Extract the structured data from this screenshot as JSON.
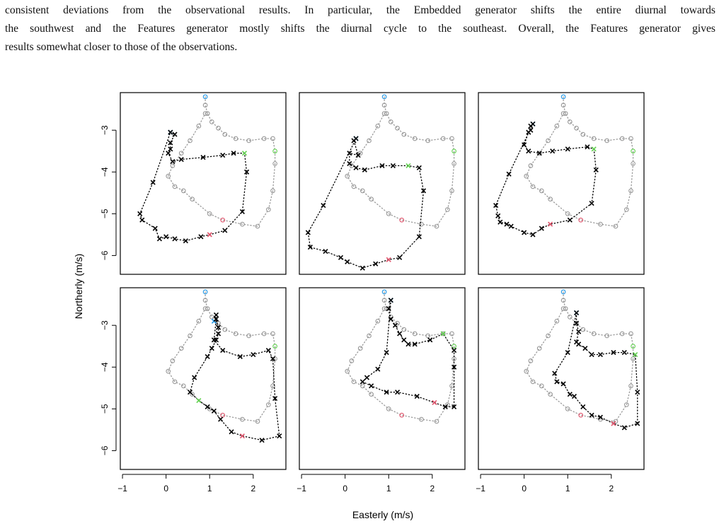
{
  "paragraph": {
    "lines": [
      "consistent deviations from the observational results. In particular, the Embedded generator shifts the entire diurnal towards",
      "the southwest and the Features generator mostly shifts the diurnal cycle to the southeast. Overall, the Features generator gives",
      "results somewhat closer to those of the observations."
    ]
  },
  "colors": {
    "observed": "#999999",
    "generated": "#000000",
    "start": "#2297e6",
    "noon": "#61d04f",
    "evening": "#df536b"
  },
  "chart_data": {
    "type": "scatter",
    "xlabel": "Easterly (m/s)",
    "ylabel": "Northerly (m/s)",
    "x_ticks": [
      "−1",
      "0",
      "1",
      "2"
    ],
    "y_ticks": [
      "−3",
      "−4",
      "−5",
      "−6"
    ],
    "xlim": [
      -1.05,
      2.75
    ],
    "ylim": [
      -6.45,
      -2.1
    ],
    "grid": false,
    "observed_series": [
      [
        0.9,
        -2.2
      ],
      [
        0.9,
        -2.4
      ],
      [
        0.95,
        -2.6
      ],
      [
        1.05,
        -2.8
      ],
      [
        1.2,
        -2.95
      ],
      [
        1.35,
        -3.1
      ],
      [
        1.6,
        -3.2
      ],
      [
        1.9,
        -3.25
      ],
      [
        2.25,
        -3.2
      ],
      [
        2.45,
        -3.2
      ],
      [
        2.5,
        -3.5
      ],
      [
        2.5,
        -3.8
      ],
      [
        2.45,
        -4.45
      ],
      [
        2.35,
        -4.9
      ],
      [
        2.1,
        -5.3
      ],
      [
        1.75,
        -5.25
      ],
      [
        1.3,
        -5.15
      ],
      [
        1.0,
        -5.0
      ],
      [
        0.6,
        -4.65
      ],
      [
        0.4,
        -4.45
      ],
      [
        0.2,
        -4.35
      ],
      [
        0.05,
        -4.1
      ],
      [
        0.15,
        -3.85
      ],
      [
        0.35,
        -3.55
      ],
      [
        0.55,
        -3.25
      ],
      [
        0.75,
        -2.9
      ],
      [
        0.9,
        -2.6
      ]
    ],
    "panels": [
      [
        [
          0.1,
          -3.05
        ],
        [
          0.2,
          -3.1
        ],
        [
          0.1,
          -3.3
        ],
        [
          0.1,
          -3.45
        ],
        [
          0.05,
          -3.55
        ],
        [
          0.15,
          -3.75
        ],
        [
          0.35,
          -3.7
        ],
        [
          0.85,
          -3.65
        ],
        [
          1.3,
          -3.6
        ],
        [
          1.55,
          -3.55
        ],
        [
          1.8,
          -3.55
        ],
        [
          1.85,
          -4.0
        ],
        [
          1.75,
          -4.95
        ],
        [
          1.35,
          -5.4
        ],
        [
          1.0,
          -5.5
        ],
        [
          0.8,
          -5.55
        ],
        [
          0.45,
          -5.65
        ],
        [
          0.2,
          -5.6
        ],
        [
          0.0,
          -5.55
        ],
        [
          -0.15,
          -5.6
        ],
        [
          -0.25,
          -5.35
        ],
        [
          -0.55,
          -5.15
        ],
        [
          -0.6,
          -5.0
        ],
        [
          -0.3,
          -4.25
        ],
        [
          0.1,
          -3.05
        ]
      ],
      [
        [
          0.25,
          -3.2
        ],
        [
          0.2,
          -3.25
        ],
        [
          0.3,
          -3.6
        ],
        [
          0.1,
          -3.55
        ],
        [
          0.1,
          -3.8
        ],
        [
          0.25,
          -3.9
        ],
        [
          0.45,
          -3.95
        ],
        [
          0.85,
          -3.85
        ],
        [
          1.1,
          -3.85
        ],
        [
          1.45,
          -3.85
        ],
        [
          1.7,
          -3.9
        ],
        [
          1.8,
          -4.45
        ],
        [
          1.7,
          -5.55
        ],
        [
          1.25,
          -6.05
        ],
        [
          1.0,
          -6.1
        ],
        [
          0.7,
          -6.2
        ],
        [
          0.4,
          -6.3
        ],
        [
          0.05,
          -6.15
        ],
        [
          -0.1,
          -6.05
        ],
        [
          -0.45,
          -5.9
        ],
        [
          -0.8,
          -5.8
        ],
        [
          -0.85,
          -5.45
        ],
        [
          -0.5,
          -4.8
        ],
        [
          0.25,
          -3.2
        ]
      ],
      [
        [
          0.2,
          -2.85
        ],
        [
          0.15,
          -2.9
        ],
        [
          0.15,
          -3.0
        ],
        [
          0.1,
          -3.05
        ],
        [
          0.0,
          -3.35
        ],
        [
          0.1,
          -3.5
        ],
        [
          0.35,
          -3.55
        ],
        [
          0.65,
          -3.5
        ],
        [
          1.0,
          -3.45
        ],
        [
          1.45,
          -3.4
        ],
        [
          1.6,
          -3.45
        ],
        [
          1.65,
          -3.95
        ],
        [
          1.55,
          -4.75
        ],
        [
          1.05,
          -5.15
        ],
        [
          0.6,
          -5.25
        ],
        [
          0.4,
          -5.35
        ],
        [
          0.2,
          -5.5
        ],
        [
          0.0,
          -5.45
        ],
        [
          -0.3,
          -5.3
        ],
        [
          -0.4,
          -5.25
        ],
        [
          -0.55,
          -5.2
        ],
        [
          -0.6,
          -5.05
        ],
        [
          -0.65,
          -4.8
        ],
        [
          -0.35,
          -4.05
        ],
        [
          0.2,
          -2.85
        ]
      ],
      [
        [
          1.1,
          -2.9
        ],
        [
          1.15,
          -2.75
        ],
        [
          1.15,
          -2.85
        ],
        [
          1.2,
          -3.05
        ],
        [
          1.2,
          -3.2
        ],
        [
          1.15,
          -3.35
        ],
        [
          1.05,
          -3.55
        ],
        [
          0.95,
          -3.75
        ],
        [
          0.65,
          -4.25
        ],
        [
          0.55,
          -4.6
        ],
        [
          0.75,
          -4.8
        ],
        [
          0.95,
          -4.95
        ],
        [
          1.1,
          -5.05
        ],
        [
          1.25,
          -5.25
        ],
        [
          1.5,
          -5.55
        ],
        [
          1.75,
          -5.65
        ],
        [
          2.2,
          -5.75
        ],
        [
          2.6,
          -5.65
        ],
        [
          2.5,
          -4.75
        ],
        [
          2.45,
          -3.8
        ],
        [
          2.35,
          -3.6
        ],
        [
          2.0,
          -3.7
        ],
        [
          1.7,
          -3.75
        ],
        [
          1.3,
          -3.6
        ],
        [
          1.1,
          -3.35
        ],
        [
          1.15,
          -2.85
        ]
      ],
      [
        [
          1.05,
          -2.4
        ],
        [
          1.0,
          -2.6
        ],
        [
          1.05,
          -2.85
        ],
        [
          1.15,
          -3.0
        ],
        [
          1.25,
          -3.2
        ],
        [
          1.35,
          -3.35
        ],
        [
          1.45,
          -3.45
        ],
        [
          1.6,
          -3.45
        ],
        [
          1.95,
          -3.35
        ],
        [
          2.25,
          -3.2
        ],
        [
          2.5,
          -3.6
        ],
        [
          2.5,
          -4.0
        ],
        [
          2.5,
          -4.95
        ],
        [
          2.3,
          -4.95
        ],
        [
          2.05,
          -4.85
        ],
        [
          1.65,
          -4.7
        ],
        [
          1.2,
          -4.6
        ],
        [
          0.95,
          -4.6
        ],
        [
          0.6,
          -4.45
        ],
        [
          0.4,
          -4.35
        ],
        [
          0.5,
          -4.25
        ],
        [
          0.75,
          -4.05
        ],
        [
          0.95,
          -3.65
        ],
        [
          1.05,
          -2.4
        ]
      ],
      [
        [
          1.2,
          -2.7
        ],
        [
          1.2,
          -2.95
        ],
        [
          1.25,
          -3.15
        ],
        [
          1.2,
          -3.4
        ],
        [
          1.25,
          -3.45
        ],
        [
          1.4,
          -3.55
        ],
        [
          1.55,
          -3.7
        ],
        [
          1.75,
          -3.7
        ],
        [
          2.05,
          -3.65
        ],
        [
          2.3,
          -3.65
        ],
        [
          2.55,
          -3.7
        ],
        [
          2.6,
          -4.6
        ],
        [
          2.6,
          -5.35
        ],
        [
          2.3,
          -5.45
        ],
        [
          2.05,
          -5.35
        ],
        [
          1.75,
          -5.2
        ],
        [
          1.55,
          -5.15
        ],
        [
          1.35,
          -4.95
        ],
        [
          1.15,
          -4.7
        ],
        [
          1.05,
          -4.65
        ],
        [
          0.9,
          -4.4
        ],
        [
          0.75,
          -4.35
        ],
        [
          0.7,
          -4.15
        ],
        [
          1.0,
          -3.65
        ],
        [
          1.2,
          -2.7
        ]
      ]
    ]
  }
}
